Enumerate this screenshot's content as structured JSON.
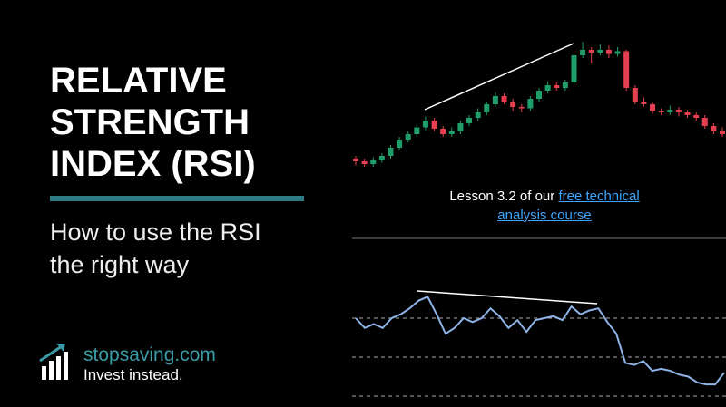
{
  "title": "RELATIVE STRENGTH INDEX (RSI)",
  "subtitle": "How to use the RSI the right way",
  "lesson": {
    "text": "Lesson 3.2 of our",
    "link": "free technical analysis course"
  },
  "brand": {
    "name": "stopsaving.com",
    "tagline": "Invest instead."
  },
  "chart_data": [
    {
      "type": "candlestick",
      "ylim": [
        0,
        100
      ],
      "up_color": "#1f9e6a",
      "down_color": "#e5404f",
      "open": [
        10,
        8,
        6,
        9,
        12,
        18,
        24,
        28,
        33,
        38,
        32,
        28,
        30,
        36,
        40,
        44,
        50,
        56,
        52,
        48,
        47,
        54,
        60,
        64,
        62,
        66,
        86,
        90,
        88,
        90,
        87,
        89,
        62,
        52,
        50,
        45,
        44,
        46,
        44,
        42,
        40,
        34,
        30
      ],
      "high": [
        12,
        10,
        11,
        14,
        20,
        26,
        30,
        35,
        41,
        40,
        34,
        33,
        38,
        42,
        47,
        52,
        59,
        58,
        54,
        50,
        56,
        62,
        67,
        66,
        68,
        88,
        96,
        92,
        94,
        93,
        92,
        90,
        64,
        55,
        52,
        47,
        49,
        48,
        46,
        44,
        42,
        36,
        33
      ],
      "low": [
        5,
        4,
        4,
        7,
        10,
        16,
        22,
        26,
        31,
        30,
        26,
        26,
        28,
        34,
        38,
        42,
        48,
        50,
        45,
        44,
        45,
        52,
        58,
        60,
        60,
        64,
        84,
        80,
        86,
        84,
        85,
        60,
        50,
        48,
        43,
        42,
        42,
        41,
        40,
        38,
        32,
        28,
        26
      ],
      "close": [
        8,
        6,
        9,
        12,
        18,
        24,
        28,
        33,
        38,
        32,
        28,
        30,
        36,
        40,
        44,
        50,
        56,
        52,
        48,
        47,
        54,
        60,
        64,
        62,
        66,
        86,
        90,
        88,
        90,
        87,
        89,
        62,
        52,
        50,
        45,
        44,
        46,
        44,
        42,
        40,
        34,
        30,
        28
      ]
    },
    {
      "type": "line",
      "ylim": [
        25,
        85
      ],
      "color": "#8fb4e8",
      "levels": [
        70,
        50,
        30
      ],
      "values": [
        70,
        65,
        67,
        65,
        70,
        72,
        75,
        79,
        81,
        72,
        62,
        65,
        70,
        68,
        70,
        75,
        71,
        65,
        69,
        63,
        69,
        70,
        71,
        69,
        76,
        72,
        74,
        75,
        68,
        62,
        47,
        46,
        48,
        43,
        44,
        43,
        41,
        40,
        37,
        36,
        36,
        42
      ]
    }
  ]
}
